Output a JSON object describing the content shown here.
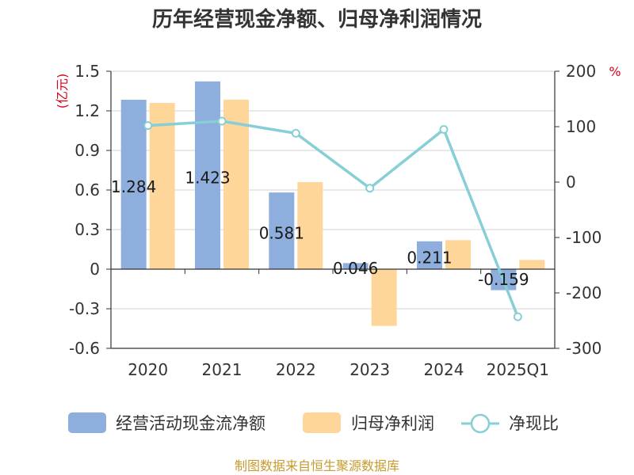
{
  "chart_data": {
    "type": "bar",
    "title": "历年经营现金净额、归母净利润情况",
    "categories": [
      "2020",
      "2021",
      "2022",
      "2023",
      "2024",
      "2025Q1"
    ],
    "series": [
      {
        "name": "经营活动现金流净额",
        "type": "bar",
        "axis": "left",
        "color": "#8eaedd",
        "values": [
          1.284,
          1.423,
          0.581,
          0.046,
          0.211,
          -0.159
        ]
      },
      {
        "name": "归母净利润",
        "type": "bar",
        "axis": "left",
        "color": "#ffd699",
        "values": [
          1.26,
          1.285,
          0.66,
          -0.43,
          0.22,
          0.07
        ]
      },
      {
        "name": "净现比",
        "type": "line",
        "axis": "right",
        "color": "#87cfd6",
        "values": [
          102,
          110,
          88,
          -11,
          95,
          -243
        ]
      }
    ],
    "data_labels": [
      "1.284",
      "1.423",
      "0.581",
      "0.046",
      "0.211",
      "-0.159"
    ],
    "y_left": {
      "unit": "(亿元)",
      "ticks": [
        "1.5",
        "1.2",
        "0.9",
        "0.6",
        "0.3",
        "0",
        "-0.3",
        "-0.6"
      ],
      "min": -0.6,
      "max": 1.5
    },
    "y_right": {
      "unit": "%",
      "ticks": [
        "200",
        "100",
        "0",
        "-100",
        "-200",
        "-300"
      ],
      "min": -300,
      "max": 200
    },
    "grid": true,
    "legend_position": "bottom"
  },
  "source": "制图数据来自恒生聚源数据库"
}
